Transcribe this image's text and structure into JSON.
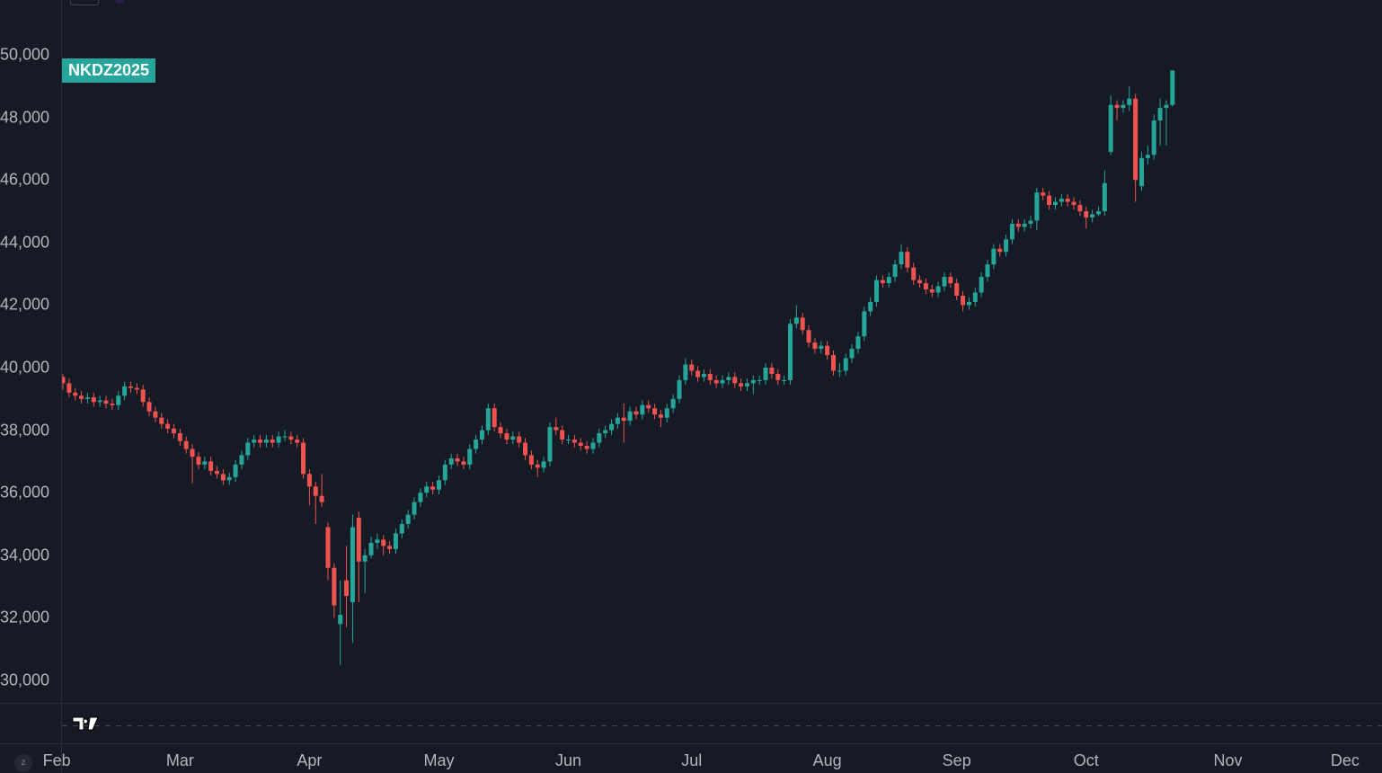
{
  "symbol_label": "NKDZ2025",
  "logo_text": "TV",
  "z_button": "z",
  "colors": {
    "up": "#26a69a",
    "down": "#ef5350",
    "background": "#161a25"
  },
  "chart_data": {
    "type": "candlestick",
    "symbol": "NKDZ2025",
    "ylim": [
      29500,
      51500
    ],
    "y_ticks": [
      "30,000",
      "32,000",
      "34,000",
      "36,000",
      "38,000",
      "40,000",
      "42,000",
      "44,000",
      "46,000",
      "48,000",
      "50,000"
    ],
    "y_tick_values": [
      30000,
      32000,
      34000,
      36000,
      38000,
      40000,
      42000,
      44000,
      46000,
      48000,
      50000
    ],
    "x_ticks": [
      "Feb",
      "Mar",
      "Apr",
      "May",
      "Jun",
      "Jul",
      "Aug",
      "Sep",
      "Oct",
      "Nov",
      "Dec"
    ],
    "x_tick_bar_index": [
      -1,
      19,
      40,
      61,
      82,
      102,
      124,
      145,
      166,
      189,
      208
    ],
    "ohlc": [
      [
        39700,
        39800,
        39300,
        39500
      ],
      [
        39500,
        39650,
        39050,
        39200
      ],
      [
        39200,
        39350,
        38950,
        39100
      ],
      [
        39100,
        39250,
        38850,
        39000
      ],
      [
        39000,
        39200,
        38850,
        39050
      ],
      [
        39050,
        39200,
        38750,
        38900
      ],
      [
        38900,
        39100,
        38750,
        38950
      ],
      [
        38950,
        39100,
        38700,
        38850
      ],
      [
        38850,
        39000,
        38650,
        38800
      ],
      [
        38800,
        39250,
        38650,
        39100
      ],
      [
        39100,
        39550,
        38950,
        39400
      ],
      [
        39400,
        39550,
        39200,
        39350
      ],
      [
        39350,
        39500,
        39150,
        39300
      ],
      [
        39300,
        39450,
        38750,
        38900
      ],
      [
        38900,
        39050,
        38450,
        38600
      ],
      [
        38600,
        38750,
        38250,
        38400
      ],
      [
        38400,
        38550,
        38050,
        38200
      ],
      [
        38200,
        38350,
        37900,
        38050
      ],
      [
        38050,
        38200,
        37750,
        37900
      ],
      [
        37900,
        38050,
        37500,
        37650
      ],
      [
        37650,
        37800,
        37250,
        37400
      ],
      [
        37400,
        37550,
        36300,
        37150
      ],
      [
        37150,
        37300,
        36750,
        36900
      ],
      [
        36900,
        37150,
        36750,
        37000
      ],
      [
        37000,
        37150,
        36550,
        36700
      ],
      [
        36700,
        36850,
        36450,
        36600
      ],
      [
        36600,
        36750,
        36250,
        36400
      ],
      [
        36400,
        36650,
        36250,
        36500
      ],
      [
        36500,
        37050,
        36350,
        36900
      ],
      [
        36900,
        37350,
        36750,
        37200
      ],
      [
        37200,
        37750,
        37050,
        37600
      ],
      [
        37600,
        37850,
        37450,
        37700
      ],
      [
        37700,
        37850,
        37450,
        37600
      ],
      [
        37600,
        37850,
        37450,
        37700
      ],
      [
        37700,
        37850,
        37450,
        37600
      ],
      [
        37600,
        37950,
        37450,
        37800
      ],
      [
        37800,
        38000,
        37650,
        37800
      ],
      [
        37800,
        37950,
        37550,
        37700
      ],
      [
        37700,
        37850,
        37450,
        37600
      ],
      [
        37600,
        37750,
        36450,
        36600
      ],
      [
        36600,
        36750,
        35600,
        36200
      ],
      [
        36200,
        36350,
        35000,
        35900
      ],
      [
        35900,
        36600,
        35550,
        35700
      ],
      [
        34900,
        35050,
        33200,
        33600
      ],
      [
        33600,
        33750,
        32000,
        32400
      ],
      [
        31800,
        33200,
        30500,
        32100
      ],
      [
        33200,
        34300,
        31700,
        32700
      ],
      [
        32500,
        35300,
        31200,
        34900
      ],
      [
        35200,
        35400,
        32500,
        33800
      ],
      [
        33800,
        34200,
        32800,
        34000
      ],
      [
        34000,
        34600,
        33900,
        34400
      ],
      [
        34400,
        34700,
        34200,
        34500
      ],
      [
        34500,
        34650,
        34000,
        34300
      ],
      [
        34300,
        34450,
        34050,
        34200
      ],
      [
        34200,
        34850,
        34050,
        34700
      ],
      [
        34700,
        35150,
        34550,
        35000
      ],
      [
        35000,
        35450,
        34850,
        35300
      ],
      [
        35300,
        35850,
        35150,
        35700
      ],
      [
        35700,
        36150,
        35550,
        36000
      ],
      [
        36000,
        36350,
        35850,
        36200
      ],
      [
        36200,
        36350,
        35950,
        36100
      ],
      [
        36100,
        36550,
        35950,
        36400
      ],
      [
        36400,
        37050,
        36250,
        36900
      ],
      [
        36900,
        37250,
        36750,
        37100
      ],
      [
        37100,
        37250,
        36850,
        37000
      ],
      [
        37000,
        37150,
        36750,
        36900
      ],
      [
        36900,
        37550,
        36750,
        37400
      ],
      [
        37400,
        37850,
        37250,
        37700
      ],
      [
        37700,
        38150,
        37550,
        38000
      ],
      [
        38000,
        38850,
        37850,
        38700
      ],
      [
        38700,
        38850,
        37950,
        38100
      ],
      [
        38100,
        38250,
        37750,
        37900
      ],
      [
        37900,
        38050,
        37550,
        37700
      ],
      [
        37700,
        37950,
        37550,
        37800
      ],
      [
        37800,
        37950,
        37450,
        37600
      ],
      [
        37600,
        37750,
        37050,
        37200
      ],
      [
        37200,
        37350,
        36750,
        36900
      ],
      [
        36900,
        37050,
        36500,
        36800
      ],
      [
        36800,
        37150,
        36650,
        37000
      ],
      [
        37000,
        38250,
        36850,
        38100
      ],
      [
        38100,
        38400,
        37850,
        38000
      ],
      [
        38000,
        38150,
        37550,
        37700
      ],
      [
        37700,
        37850,
        37550,
        37700
      ],
      [
        37700,
        37850,
        37450,
        37600
      ],
      [
        37600,
        37750,
        37350,
        37500
      ],
      [
        37500,
        37650,
        37250,
        37400
      ],
      [
        37400,
        37750,
        37250,
        37600
      ],
      [
        37600,
        38050,
        37450,
        37900
      ],
      [
        37900,
        38150,
        37750,
        38000
      ],
      [
        38000,
        38350,
        37850,
        38200
      ],
      [
        38200,
        38550,
        38050,
        38400
      ],
      [
        38400,
        38850,
        37600,
        38300
      ],
      [
        38300,
        38750,
        38150,
        38600
      ],
      [
        38600,
        38750,
        38350,
        38500
      ],
      [
        38500,
        38950,
        38350,
        38800
      ],
      [
        38800,
        38950,
        38550,
        38700
      ],
      [
        38700,
        38850,
        38350,
        38500
      ],
      [
        38500,
        38650,
        38100,
        38400
      ],
      [
        38400,
        38850,
        38250,
        38700
      ],
      [
        38700,
        39150,
        38550,
        39000
      ],
      [
        39000,
        39750,
        38850,
        39600
      ],
      [
        39600,
        40300,
        39450,
        40100
      ],
      [
        40100,
        40250,
        39750,
        39900
      ],
      [
        39900,
        40050,
        39550,
        39700
      ],
      [
        39700,
        39950,
        39550,
        39800
      ],
      [
        39800,
        39950,
        39450,
        39600
      ],
      [
        39600,
        39750,
        39350,
        39500
      ],
      [
        39500,
        39750,
        39350,
        39600
      ],
      [
        39600,
        39850,
        39450,
        39700
      ],
      [
        39700,
        39850,
        39350,
        39500
      ],
      [
        39500,
        39650,
        39250,
        39400
      ],
      [
        39400,
        39650,
        39250,
        39500
      ],
      [
        39500,
        39750,
        39150,
        39600
      ],
      [
        39600,
        39750,
        39450,
        39600
      ],
      [
        39600,
        40150,
        39450,
        40000
      ],
      [
        40000,
        40150,
        39650,
        39800
      ],
      [
        39800,
        39950,
        39450,
        39600
      ],
      [
        39600,
        39750,
        39450,
        39600
      ],
      [
        39600,
        41550,
        39450,
        41400
      ],
      [
        41400,
        42000,
        41250,
        41600
      ],
      [
        41600,
        41750,
        41050,
        41200
      ],
      [
        41200,
        41350,
        40650,
        40800
      ],
      [
        40800,
        40950,
        40450,
        40600
      ],
      [
        40600,
        40850,
        40450,
        40700
      ],
      [
        40700,
        40850,
        40250,
        40400
      ],
      [
        40400,
        40550,
        39750,
        39900
      ],
      [
        39900,
        40150,
        39700,
        39900
      ],
      [
        39900,
        40450,
        39750,
        40300
      ],
      [
        40300,
        40750,
        40150,
        40600
      ],
      [
        40600,
        41150,
        40450,
        41000
      ],
      [
        41000,
        41950,
        40850,
        41800
      ],
      [
        41800,
        42250,
        41650,
        42100
      ],
      [
        42100,
        42950,
        41950,
        42800
      ],
      [
        42800,
        42950,
        42550,
        42700
      ],
      [
        42700,
        43050,
        42550,
        42900
      ],
      [
        42900,
        43450,
        42750,
        43300
      ],
      [
        43300,
        43950,
        43150,
        43700
      ],
      [
        43700,
        43850,
        43050,
        43200
      ],
      [
        43200,
        43350,
        42650,
        42800
      ],
      [
        42800,
        42950,
        42550,
        42700
      ],
      [
        42700,
        42850,
        42350,
        42500
      ],
      [
        42500,
        42650,
        42250,
        42400
      ],
      [
        42400,
        42750,
        42250,
        42600
      ],
      [
        42600,
        43050,
        42450,
        42900
      ],
      [
        42900,
        43050,
        42550,
        42700
      ],
      [
        42700,
        42850,
        42150,
        42300
      ],
      [
        42300,
        42450,
        41800,
        42000
      ],
      [
        42000,
        42250,
        41850,
        42100
      ],
      [
        42100,
        42550,
        41950,
        42400
      ],
      [
        42400,
        43050,
        42250,
        42900
      ],
      [
        42900,
        43450,
        42750,
        43300
      ],
      [
        43300,
        43950,
        43150,
        43800
      ],
      [
        43800,
        43950,
        43550,
        43700
      ],
      [
        43700,
        44250,
        43550,
        44100
      ],
      [
        44100,
        44750,
        43950,
        44600
      ],
      [
        44600,
        44750,
        44350,
        44500
      ],
      [
        44500,
        44750,
        44350,
        44600
      ],
      [
        44600,
        44850,
        44450,
        44700
      ],
      [
        44700,
        45750,
        44400,
        45600
      ],
      [
        45600,
        45750,
        45350,
        45500
      ],
      [
        45500,
        45650,
        45050,
        45200
      ],
      [
        45200,
        45450,
        45050,
        45300
      ],
      [
        45300,
        45550,
        45150,
        45400
      ],
      [
        45400,
        45550,
        45150,
        45300
      ],
      [
        45300,
        45450,
        45050,
        45200
      ],
      [
        45200,
        45350,
        44850,
        45000
      ],
      [
        45000,
        45150,
        44450,
        44800
      ],
      [
        44800,
        45050,
        44650,
        44900
      ],
      [
        44900,
        45150,
        44850,
        45000
      ],
      [
        45000,
        46300,
        44850,
        45900
      ],
      [
        46900,
        48700,
        46800,
        48400
      ],
      [
        48400,
        48550,
        47900,
        48300
      ],
      [
        48300,
        48550,
        48150,
        48400
      ],
      [
        48400,
        49000,
        48200,
        48600
      ],
      [
        48600,
        48750,
        45300,
        46000
      ],
      [
        45800,
        46900,
        45650,
        46700
      ],
      [
        46700,
        47100,
        46500,
        46800
      ],
      [
        46800,
        48100,
        46650,
        47900
      ],
      [
        47900,
        48600,
        47100,
        48300
      ],
      [
        48300,
        48550,
        47100,
        48400
      ],
      [
        48400,
        49500,
        48350,
        49500
      ]
    ]
  }
}
